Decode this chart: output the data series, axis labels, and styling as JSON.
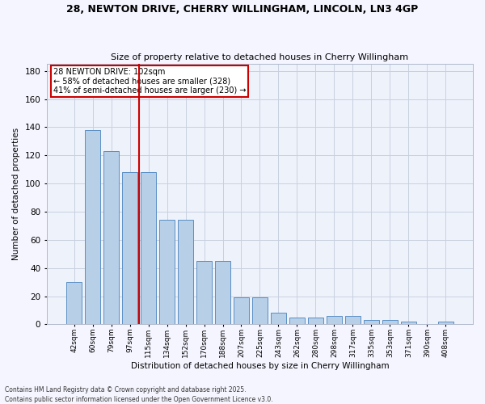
{
  "title_line1": "28, NEWTON DRIVE, CHERRY WILLINGHAM, LINCOLN, LN3 4GP",
  "title_line2": "Size of property relative to detached houses in Cherry Willingham",
  "xlabel": "Distribution of detached houses by size in Cherry Willingham",
  "ylabel": "Number of detached properties",
  "categories": [
    "42sqm",
    "60sqm",
    "79sqm",
    "97sqm",
    "115sqm",
    "134sqm",
    "152sqm",
    "170sqm",
    "188sqm",
    "207sqm",
    "225sqm",
    "243sqm",
    "262sqm",
    "280sqm",
    "298sqm",
    "317sqm",
    "335sqm",
    "353sqm",
    "371sqm",
    "390sqm",
    "408sqm"
  ],
  "bar_values": [
    30,
    138,
    123,
    108,
    108,
    74,
    74,
    45,
    45,
    19,
    19,
    8,
    5,
    5,
    6,
    6,
    3,
    3,
    2,
    0,
    2
  ],
  "bar_color": "#b8cfe8",
  "bar_edge_color": "#5a8fc4",
  "background_color": "#eef2fb",
  "grid_color": "#c8d0e0",
  "vline_color": "#cc0000",
  "vline_pos": 3.5,
  "annotation_text": "28 NEWTON DRIVE: 102sqm\n← 58% of detached houses are smaller (328)\n41% of semi-detached houses are larger (230) →",
  "annotation_box_color": "#cc0000",
  "footer_line1": "Contains HM Land Registry data © Crown copyright and database right 2025.",
  "footer_line2": "Contains public sector information licensed under the Open Government Licence v3.0.",
  "ylim": [
    0,
    185
  ],
  "yticks": [
    0,
    20,
    40,
    60,
    80,
    100,
    120,
    140,
    160,
    180
  ],
  "fig_bg": "#f5f5ff"
}
